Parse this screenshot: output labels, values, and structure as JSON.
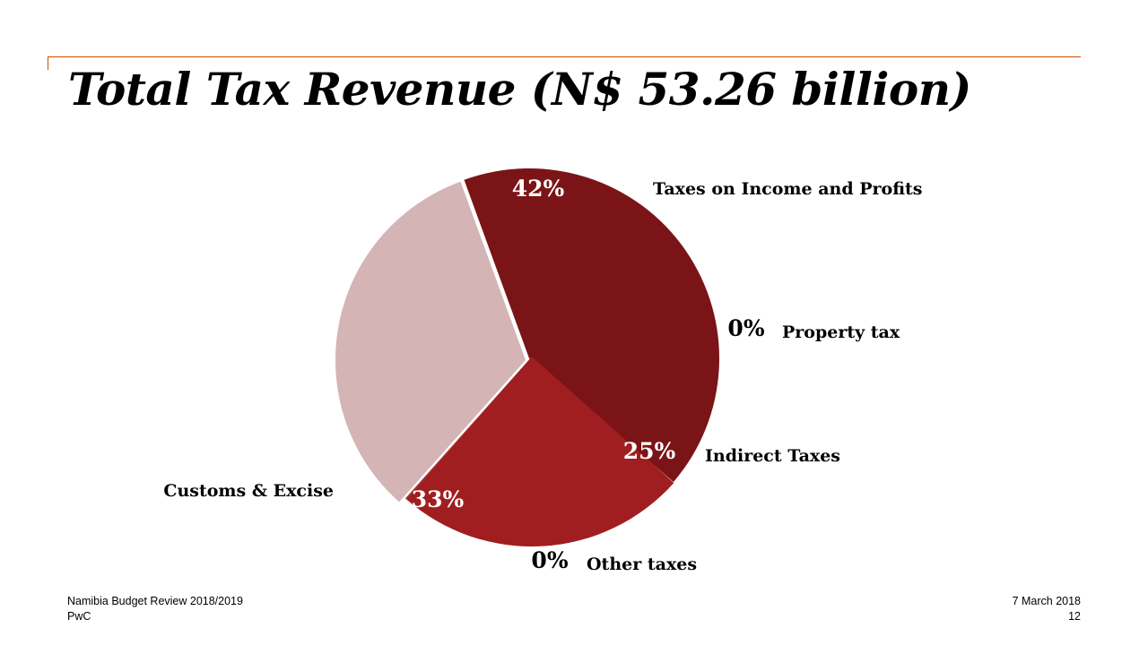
{
  "slide": {
    "title": "Total Tax Revenue (N$ 53.26 billion)"
  },
  "footer": {
    "left_line1": "Namibia Budget Review 2018/2019",
    "left_line2": "PwC",
    "date": "7 March 2018",
    "page_number": "12"
  },
  "chart_data": {
    "type": "pie",
    "exploded": true,
    "data_labels_as_percent": true,
    "slices": [
      {
        "name": "Taxes on Income and Profits",
        "value": 42,
        "label": "42%",
        "color": "#7b1416",
        "label_color": "#ffffff"
      },
      {
        "name": "Property tax",
        "value": 0.3,
        "label": "0%",
        "color": "#7b1416",
        "label_color": "#000000"
      },
      {
        "name": "Indirect Taxes",
        "value": 25,
        "label": "25%",
        "color": "#a01e20",
        "label_color": "#ffffff"
      },
      {
        "name": "Other taxes",
        "value": 0.1,
        "label": "0%",
        "color": "#a01e20",
        "label_color": "#000000"
      },
      {
        "name": "Customs & Excise",
        "value": 33,
        "label": "33%",
        "color": "#d5b4b6",
        "label_color": "#ffffff"
      }
    ]
  }
}
